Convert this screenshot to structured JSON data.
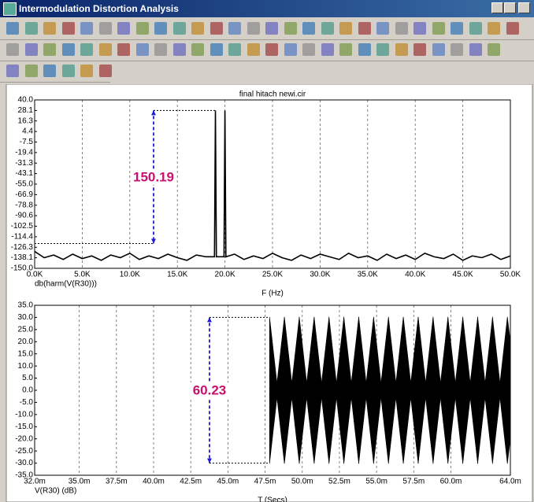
{
  "window_title": "Intermodulation Distortion Analysis",
  "chart_data": [
    {
      "type": "line",
      "title": "final hitach newi.cir",
      "y_label": "db(harm(V(R30)))",
      "x_label": "F (Hz)",
      "xlim": [
        0,
        50000
      ],
      "ylim": [
        -150,
        40
      ],
      "grid": true,
      "color": "#000000",
      "xticks": [
        {
          "value": 0,
          "label": "0.0K"
        },
        {
          "value": 5000,
          "label": "5.0K"
        },
        {
          "value": 10000,
          "label": "10.0K"
        },
        {
          "value": 15000,
          "label": "15.0K"
        },
        {
          "value": 20000,
          "label": "20.0K"
        },
        {
          "value": 25000,
          "label": "25.0K"
        },
        {
          "value": 30000,
          "label": "30.0K"
        },
        {
          "value": 35000,
          "label": "35.0K"
        },
        {
          "value": 40000,
          "label": "40.0K"
        },
        {
          "value": 45000,
          "label": "45.0K"
        },
        {
          "value": 50000,
          "label": "50.0K"
        }
      ],
      "yticks": [
        {
          "value": 40,
          "label": "40.0"
        },
        28.1,
        16.3,
        4.4,
        -7.5,
        -19.4,
        -31.3,
        -43.1,
        {
          "value": -55,
          "label": "-55.0"
        },
        -66.9,
        -78.8,
        -90.6,
        -102.5,
        -114.4,
        -126.3,
        -138.1,
        {
          "value": -150,
          "label": "-150.0"
        }
      ],
      "x": [
        0,
        1000,
        2000,
        3000,
        4000,
        5000,
        6000,
        7000,
        8000,
        9000,
        10000,
        11000,
        12000,
        13000,
        14000,
        15000,
        16000,
        17000,
        18000,
        18900,
        19000,
        19100,
        19900,
        20000,
        20100,
        21000,
        22000,
        23000,
        24000,
        25000,
        26000,
        27000,
        28000,
        29000,
        30000,
        31000,
        32000,
        33000,
        34000,
        35000,
        36000,
        37000,
        38000,
        39000,
        40000,
        41000,
        42000,
        43000,
        44000,
        45000,
        46000,
        47000,
        48000,
        49000,
        50000
      ],
      "values": [
        -131,
        -138,
        -135,
        -140,
        -134,
        -139,
        -136,
        -141,
        -135,
        -138,
        -133,
        -140,
        -136,
        -139,
        -134,
        -138,
        -141,
        -135,
        -137,
        -137,
        28.1,
        -137,
        -137,
        28.1,
        -137,
        -134,
        -140,
        -136,
        -139,
        -133,
        -138,
        -141,
        -135,
        -139,
        -134,
        -137,
        -140,
        -133,
        -138,
        -136,
        -141,
        -134,
        -139,
        -135,
        -140,
        -133,
        -137,
        -139,
        -134,
        -141,
        -136,
        -138,
        -134,
        -140,
        -136
      ],
      "annotation": {
        "label": "150.19",
        "x": 12500,
        "y_top": 28.1,
        "y_bottom": -122,
        "x_end": 19000,
        "color": "#1c1cd6",
        "text_color": "#c8106c"
      }
    },
    {
      "type": "envelope",
      "y_label": "V(R30) (dB)",
      "x_label": "T (Secs)",
      "xlim": [
        0.032,
        0.064
      ],
      "ylim": [
        -35,
        35
      ],
      "grid": true,
      "color": "#000000",
      "xticks": [
        {
          "value": 0.032,
          "label": "32.0m"
        },
        {
          "value": 0.035,
          "label": "35.0m"
        },
        {
          "value": 0.0375,
          "label": "37.5m"
        },
        {
          "value": 0.04,
          "label": "40.0m"
        },
        {
          "value": 0.0425,
          "label": "42.5m"
        },
        {
          "value": 0.045,
          "label": "45.0m"
        },
        {
          "value": 0.0475,
          "label": "47.5m"
        },
        {
          "value": 0.05,
          "label": "50.0m"
        },
        {
          "value": 0.0525,
          "label": "52.5m"
        },
        {
          "value": 0.055,
          "label": "55.0m"
        },
        {
          "value": 0.0575,
          "label": "57.5m"
        },
        {
          "value": 0.06,
          "label": "60.0m"
        },
        {
          "value": 0.064,
          "label": "64.0m"
        }
      ],
      "yticks": [
        {
          "value": 35,
          "label": "35.0"
        },
        {
          "value": 30,
          "label": "30.0"
        },
        {
          "value": 25,
          "label": "25.0"
        },
        {
          "value": 20,
          "label": "20.0"
        },
        {
          "value": 15,
          "label": "15.0"
        },
        {
          "value": 10,
          "label": "10.0"
        },
        {
          "value": 5,
          "label": "5.0"
        },
        {
          "value": 0,
          "label": "0.0"
        },
        {
          "value": -5,
          "label": "-5.0"
        },
        {
          "value": -10,
          "label": "-10.0"
        },
        {
          "value": -15,
          "label": "-15.0"
        },
        {
          "value": -20,
          "label": "-20.0"
        },
        {
          "value": -25,
          "label": "-25.0"
        },
        {
          "value": -30,
          "label": "-30.0"
        },
        {
          "value": -35,
          "label": "-35.0"
        }
      ],
      "x": [
        0.0478,
        0.0483,
        0.0488,
        0.0493,
        0.0498,
        0.0503,
        0.0508,
        0.0513,
        0.0518,
        0.0523,
        0.0528,
        0.0533,
        0.0538,
        0.0543,
        0.0548,
        0.0553,
        0.0558,
        0.0563,
        0.0568,
        0.0573,
        0.0578,
        0.0583,
        0.0588,
        0.0593,
        0.0598,
        0.0603,
        0.0608,
        0.0613,
        0.0618,
        0.0623,
        0.0628,
        0.0633,
        0.0638,
        0.064
      ],
      "values": [
        30.2,
        3,
        30.2,
        3,
        30.2,
        3,
        30.2,
        3,
        30.2,
        3,
        30.2,
        3,
        30.2,
        3,
        30.2,
        3,
        30.2,
        3,
        30.2,
        3,
        30.2,
        3,
        30.2,
        3,
        30.2,
        3,
        30.2,
        3,
        30.2,
        3,
        30.2,
        3,
        30.2,
        20
      ],
      "annotation": {
        "label": "60.23",
        "x": 0.04376,
        "y_top": 30,
        "y_bottom": -30,
        "x_end": 0.0477,
        "color": "#1c1cd6",
        "text_color": "#c8106c"
      }
    }
  ]
}
